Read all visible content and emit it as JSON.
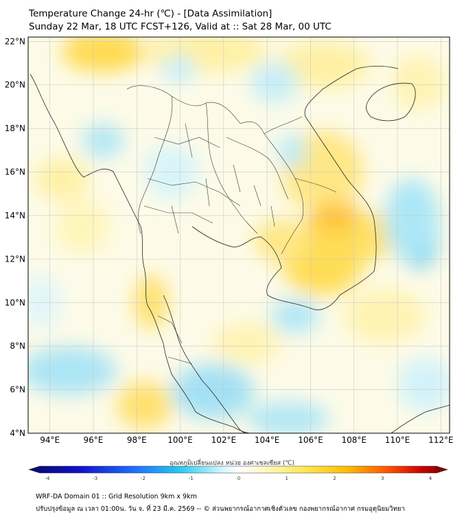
{
  "title": {
    "line1": "Temperature Change 24-hr (℃) - [Data Assimilation]",
    "line2": "Sunday 22 Mar, 18 UTC FCST+126, Valid at :: Sat 28 Mar, 00 UTC"
  },
  "axes": {
    "y_labels": [
      "22°N",
      "20°N",
      "18°N",
      "16°N",
      "14°N",
      "12°N",
      "10°N",
      "8°N",
      "6°N",
      "4°N"
    ],
    "x_labels": [
      "94°E",
      "96°E",
      "98°E",
      "100°E",
      "102°E",
      "104°E",
      "106°E",
      "108°E",
      "110°E",
      "112°E"
    ],
    "lat_range": [
      4,
      22.2
    ],
    "lon_range": [
      93,
      112.4
    ],
    "grid": true
  },
  "colorbar": {
    "title": "อุณหภูมิเปลี่ยนแปลง หน่วย องศาเซลเซียส (℃)",
    "ticks": [
      "-4",
      "-3",
      "-2",
      "-1",
      "0",
      "1",
      "2",
      "3",
      "4"
    ],
    "range": [
      -4,
      4
    ],
    "colors": [
      "#08086b",
      "#1010c8",
      "#1e50ff",
      "#1ea0ff",
      "#28d2f0",
      "#b4f0ff",
      "#ffffff",
      "#fff5b4",
      "#ffe650",
      "#ffc800",
      "#ff8c00",
      "#ff2800",
      "#b40000",
      "#6b0000"
    ]
  },
  "footer": {
    "line1": "WRF-DA Domain 01 :: Grid Resolution 9km x 9km",
    "line2": "ปรับปรุงข้อมูล ณ เวลา 01:00น. วัน จ. ที่ 23 มี.ค. 2569 -- © ส่วนพยากรณ์อากาศเชิงตัวเลข กองพยากรณ์อากาศ กรมอุตุนิยมวิทยา"
  }
}
